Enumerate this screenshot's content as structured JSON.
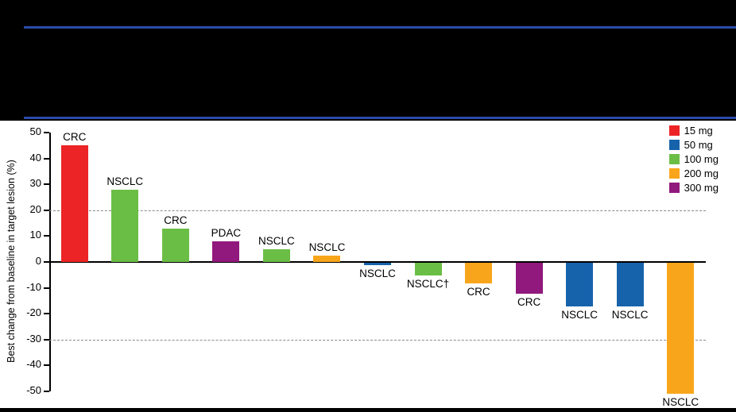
{
  "page": {
    "background_color": "#000000",
    "divider_color": "#2B4BA8",
    "panel_background": "#FFFFFF"
  },
  "chart_data": {
    "type": "bar",
    "subtype": "waterfall",
    "title": "",
    "xlabel": "",
    "ylabel": "Best change from baseline in target lesion (%)",
    "ylim": [
      -50,
      50
    ],
    "yticks": [
      50,
      40,
      30,
      20,
      10,
      0,
      -10,
      -20,
      -30,
      -40,
      -50
    ],
    "reference_lines": [
      20,
      -30
    ],
    "grid": "dashed horizontal reference lines at +20 and -30",
    "legend": {
      "position": "top-right",
      "entries": [
        {
          "label": "15 mg",
          "color": "#EC2426"
        },
        {
          "label": "50 mg",
          "color": "#1663AC"
        },
        {
          "label": "100 mg",
          "color": "#6BBE45"
        },
        {
          "label": "200 mg",
          "color": "#F9A51B"
        },
        {
          "label": "300 mg",
          "color": "#91187C"
        }
      ]
    },
    "bars": [
      {
        "label": "CRC",
        "dose": "15 mg",
        "value": 45,
        "color": "#EC2426"
      },
      {
        "label": "NSCLC",
        "dose": "100 mg",
        "value": 28,
        "color": "#6BBE45"
      },
      {
        "label": "CRC",
        "dose": "100 mg",
        "value": 13,
        "color": "#6BBE45"
      },
      {
        "label": "PDAC",
        "dose": "300 mg",
        "value": 8,
        "color": "#91187C"
      },
      {
        "label": "NSCLC",
        "dose": "100 mg",
        "value": 5,
        "color": "#6BBE45"
      },
      {
        "label": "NSCLC",
        "dose": "200 mg",
        "value": 2.5,
        "color": "#F9A51B"
      },
      {
        "label": "NSCLC",
        "dose": "50 mg",
        "value": -1,
        "color": "#1663AC"
      },
      {
        "label": "NSCLC†",
        "dose": "100 mg",
        "value": -5,
        "color": "#6BBE45"
      },
      {
        "label": "CRC",
        "dose": "200 mg",
        "value": -8,
        "color": "#F9A51B"
      },
      {
        "label": "CRC",
        "dose": "300 mg",
        "value": -12,
        "color": "#91187C"
      },
      {
        "label": "NSCLC",
        "dose": "50 mg",
        "value": -17,
        "color": "#1663AC"
      },
      {
        "label": "NSCLC",
        "dose": "50 mg",
        "value": -17,
        "color": "#1663AC"
      },
      {
        "label": "NSCLC",
        "dose": "200 mg",
        "value": -50.5,
        "color": "#F9A51B"
      }
    ]
  }
}
